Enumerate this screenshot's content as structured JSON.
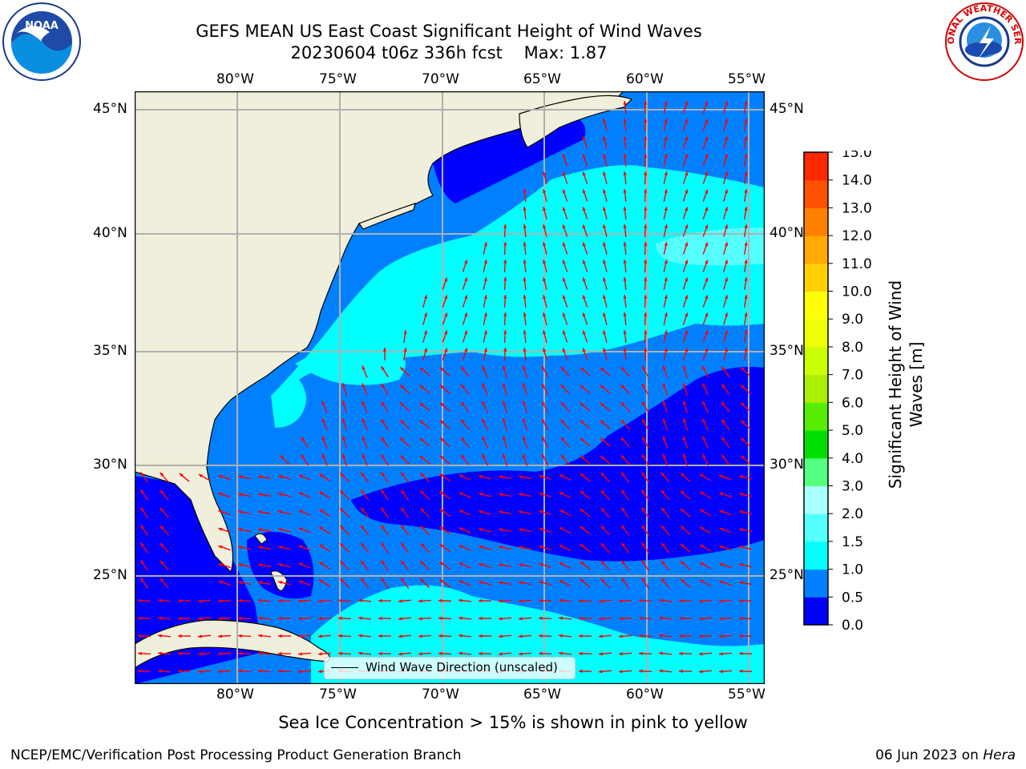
{
  "title": {
    "line1": "GEFS MEAN US East Coast Significant Height of Wind Waves",
    "line2": "20230604 t06z 336h fcst    Max: 1.87"
  },
  "map": {
    "lon_labels": [
      "80°W",
      "75°W",
      "70°W",
      "65°W",
      "60°W",
      "55°W"
    ],
    "lat_labels": [
      "45°N",
      "40°N",
      "35°N",
      "30°N",
      "25°N"
    ],
    "lon_range": [
      -85,
      -54.5
    ],
    "lat_range": [
      20.5,
      46
    ],
    "colors": {
      "land": "#efefdb",
      "coast": "#000000",
      "grid": "#b0b0b0",
      "arrow": "#ff0000"
    }
  },
  "colorbar": {
    "ticks": [
      "0.0",
      "0.5",
      "1.0",
      "1.5",
      "2.0",
      "3.0",
      "4.0",
      "5.0",
      "6.0",
      "7.0",
      "8.0",
      "9.0",
      "10.0",
      "11.0",
      "12.0",
      "13.0",
      "14.0",
      "15.0"
    ],
    "colors": [
      "#0000ff",
      "#0080ff",
      "#00ffff",
      "#55ffff",
      "#aaffff",
      "#55ff80",
      "#00e000",
      "#55ee00",
      "#aaee00",
      "#ccff00",
      "#eeff00",
      "#ffff00",
      "#ffd000",
      "#ffaa00",
      "#ff8000",
      "#ff5000",
      "#ff2800",
      "#ff0000"
    ],
    "label": "Significant Height of Wind\nWaves [m]"
  },
  "legend": {
    "text": "Wind Wave Direction (unscaled)"
  },
  "note": "Sea Ice Concentration > 15% is shown in pink to yellow",
  "footer": {
    "left": "NCEP/EMC/Verification Post Processing Product Generation Branch",
    "right_prefix": "06 Jun 2023 on ",
    "right_host": "Hera"
  },
  "logos": {
    "left_text": "NOAA",
    "right_text": "NATIONAL WEATHER SERVICE"
  }
}
